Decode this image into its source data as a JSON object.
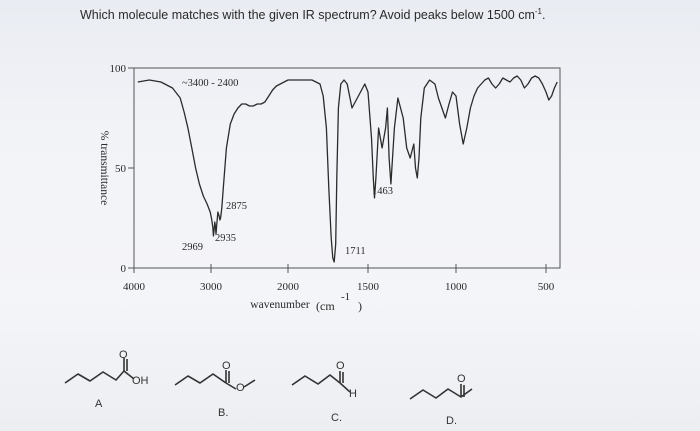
{
  "question": {
    "text": "Which molecule matches with the given IR spectrum? Avoid peaks below 1500 cm",
    "unit_superscript": "-1",
    "tail": "."
  },
  "chart_data": {
    "type": "line",
    "title": "",
    "xlabel": "wavenumber",
    "xlabel_unit": "(cm",
    "xlabel_unit_sup": "-1",
    "xlabel_unit_close": ")",
    "ylabel": "% transmittance",
    "xlim": [
      4000,
      400
    ],
    "ylim": [
      0,
      100
    ],
    "x_ticks": [
      {
        "value": 4000,
        "label": "4000"
      },
      {
        "value": 3000,
        "label": "3000"
      },
      {
        "value": 2000,
        "label": "2000"
      },
      {
        "value": 1500,
        "label": "1500"
      },
      {
        "value": 1000,
        "label": "1000"
      },
      {
        "value": 500,
        "label": "500"
      }
    ],
    "y_ticks": [
      {
        "value": 0,
        "label": "0"
      },
      {
        "value": 50,
        "label": "50"
      },
      {
        "value": 100,
        "label": "100"
      }
    ],
    "series": [
      {
        "x": [
          3950,
          3800,
          3650,
          3500,
          3400,
          3350,
          3300,
          3250,
          3200,
          3150,
          3100,
          3050,
          3010,
          2990,
          2975,
          2969,
          2960,
          2950,
          2940,
          2935,
          2925,
          2910,
          2895,
          2885,
          2875,
          2860,
          2840,
          2800,
          2750,
          2700,
          2650,
          2600,
          2550,
          2500,
          2450,
          2400,
          2350,
          2300,
          2250,
          2200,
          2150,
          2100,
          2050,
          2000,
          1950,
          1900,
          1850,
          1800,
          1780,
          1760,
          1745,
          1730,
          1720,
          1711,
          1702,
          1695,
          1685,
          1670,
          1650,
          1630,
          1600,
          1560,
          1520,
          1500,
          1480,
          1470,
          1463,
          1455,
          1440,
          1420,
          1400,
          1390,
          1380,
          1370,
          1350,
          1330,
          1300,
          1280,
          1260,
          1240,
          1230,
          1220,
          1210,
          1200,
          1180,
          1150,
          1120,
          1100,
          1080,
          1060,
          1040,
          1020,
          1000,
          980,
          960,
          940,
          920,
          900,
          880,
          860,
          840,
          820,
          800,
          780,
          760,
          740,
          720,
          700,
          680,
          660,
          640,
          620,
          600,
          580,
          560,
          540,
          520,
          500,
          480,
          460,
          440,
          420
        ],
        "y": [
          93,
          94,
          93,
          90,
          85,
          78,
          70,
          60,
          50,
          42,
          36,
          32,
          28,
          24,
          20,
          16,
          19,
          23,
          20,
          17,
          22,
          28,
          26,
          24,
          25,
          30,
          40,
          60,
          72,
          77,
          80,
          82,
          82,
          81,
          81,
          82,
          82,
          83,
          86,
          89,
          91,
          92,
          93,
          94,
          94,
          94,
          94,
          92,
          86,
          70,
          40,
          15,
          5,
          3,
          12,
          45,
          80,
          92,
          94,
          92,
          80,
          86,
          92,
          88,
          65,
          45,
          35,
          45,
          70,
          60,
          70,
          80,
          55,
          42,
          70,
          85,
          75,
          60,
          55,
          62,
          50,
          45,
          55,
          75,
          90,
          94,
          92,
          85,
          80,
          75,
          82,
          88,
          86,
          72,
          62,
          70,
          80,
          86,
          90,
          92,
          94,
          95,
          92,
          90,
          92,
          95,
          94,
          93,
          95,
          96,
          94,
          90,
          92,
          95,
          96,
          95,
          92,
          88,
          84,
          86,
          90,
          93
        ]
      }
    ],
    "annotations": [
      {
        "text": "~3400 - 2400"
      },
      {
        "text": "2875"
      },
      {
        "text": "2935"
      },
      {
        "text": "2969"
      },
      {
        "text": "1711"
      },
      {
        "text": "1463"
      }
    ]
  },
  "options": [
    {
      "letter": "A",
      "oh_label": "OH",
      "o_label": "O"
    },
    {
      "letter": "B.",
      "o_label": "O",
      "o2_label": "O"
    },
    {
      "letter": "C.",
      "o_label": "O",
      "h_label": "H"
    },
    {
      "letter": "D.",
      "o_label": "O"
    }
  ],
  "colors": {
    "axis": "#555555",
    "trace": "#2b2b2b",
    "text": "#2a2a2a"
  }
}
